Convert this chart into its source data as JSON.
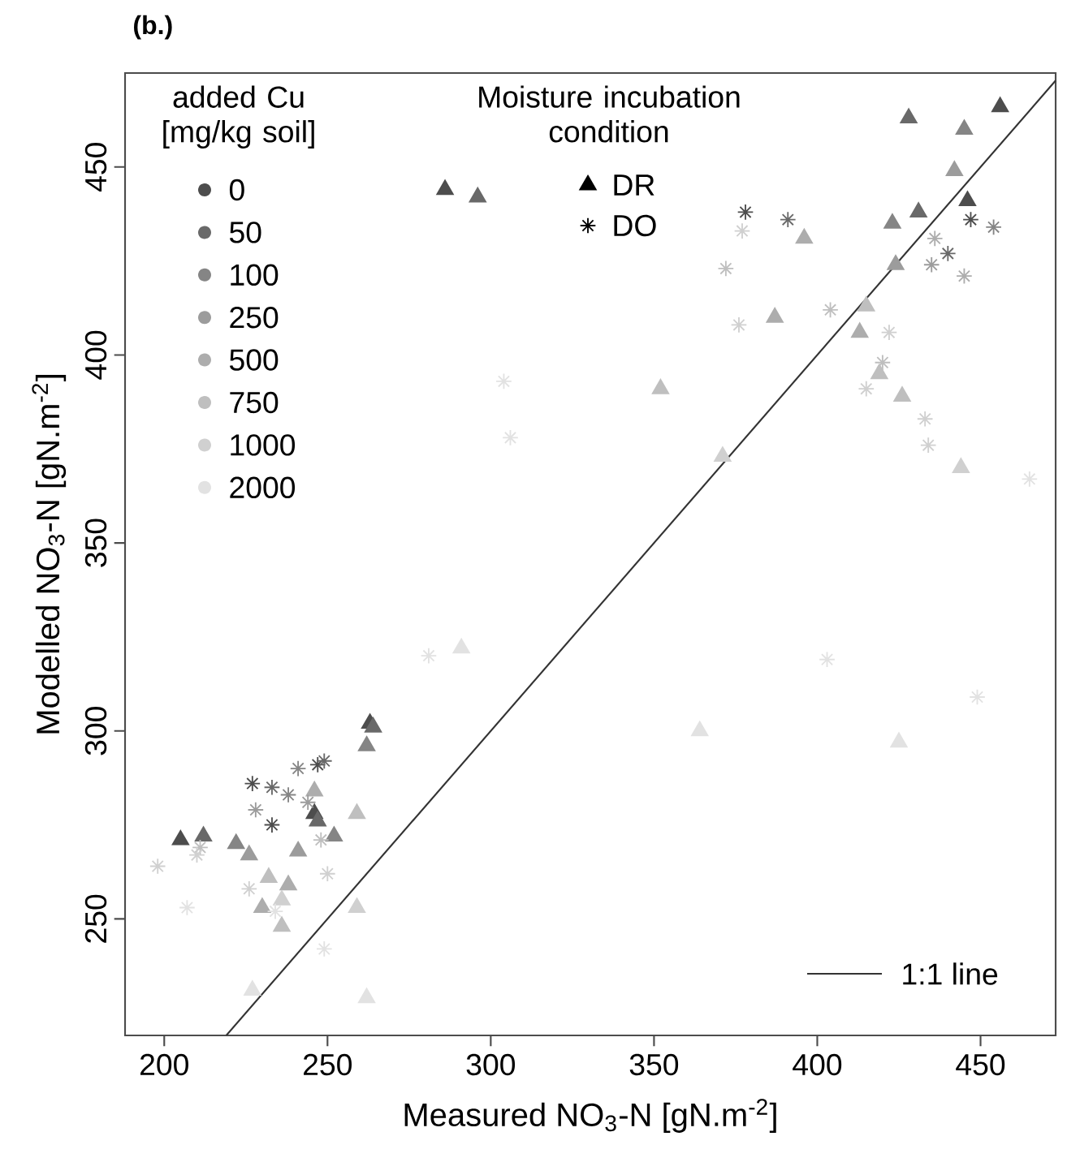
{
  "chart_data": {
    "type": "scatter",
    "title": "(b.)",
    "xlabel": "Measured NO$_{3}$-N [gN.m$^{-2}$]",
    "ylabel": "Modelled NO$_{3}$-N [gN.m$^{-2}$]",
    "xlim": [
      188,
      473
    ],
    "ylim": [
      219,
      475
    ],
    "xticks": [
      200,
      250,
      300,
      350,
      400,
      450
    ],
    "yticks": [
      250,
      300,
      350,
      400,
      450
    ],
    "legend": "top left",
    "legend_title": "added Cu [mg/kg soil]",
    "annotations": [
      "Moisture incubation condition",
      "DR",
      "DO",
      "1:1 line"
    ],
    "series": [
      {
        "name": "0",
        "color": "#4d4d4d",
        "marker": "triangle",
        "x": [
          205,
          246,
          263,
          286,
          456,
          446
        ],
        "values": [
          271,
          278,
          302,
          444,
          466,
          441
        ]
      },
      {
        "name": "50",
        "color": "#696969",
        "marker": "triangle",
        "x": [
          212,
          247,
          264,
          296,
          428,
          431
        ],
        "values": [
          272,
          276,
          301,
          442,
          463,
          438
        ]
      },
      {
        "name": "100",
        "color": "#858585",
        "marker": "triangle",
        "x": [
          222,
          252,
          262,
          445,
          423
        ],
        "values": [
          270,
          272,
          296,
          460,
          435
        ]
      },
      {
        "name": "250",
        "color": "#9c9c9c",
        "marker": "triangle",
        "x": [
          226,
          241,
          442,
          424
        ],
        "values": [
          267,
          268,
          449,
          424
        ]
      },
      {
        "name": "500",
        "color": "#adadad",
        "marker": "triangle",
        "x": [
          230,
          238,
          246,
          396,
          387,
          413
        ],
        "values": [
          253,
          259,
          284,
          431,
          410,
          406
        ]
      },
      {
        "name": "750",
        "color": "#bfbfbf",
        "marker": "triangle",
        "x": [
          236,
          232,
          259,
          352,
          415,
          419,
          426
        ],
        "values": [
          248,
          261,
          278,
          391,
          413,
          395,
          389
        ]
      },
      {
        "name": "1000",
        "color": "#d0d0d0",
        "marker": "triangle",
        "x": [
          236,
          259,
          371,
          444
        ],
        "values": [
          255,
          253,
          373,
          370
        ]
      },
      {
        "name": "2000",
        "color": "#e2e2e2",
        "marker": "triangle",
        "x": [
          262,
          227,
          291,
          364,
          425
        ],
        "values": [
          229,
          231,
          322,
          300,
          297
        ]
      },
      {
        "color": "#4d4d4d",
        "marker": "cross",
        "x": [
          227,
          233,
          247,
          378,
          447
        ],
        "values": [
          286,
          275,
          291,
          438,
          436
        ]
      },
      {
        "color": "#696969",
        "marker": "cross",
        "x": [
          233,
          249,
          391,
          440
        ],
        "values": [
          285,
          292,
          436,
          427
        ]
      },
      {
        "color": "#858585",
        "marker": "cross",
        "x": [
          238,
          241,
          454
        ],
        "values": [
          283,
          290,
          434
        ]
      },
      {
        "color": "#9c9c9c",
        "marker": "cross",
        "x": [
          228,
          244,
          435
        ],
        "values": [
          279,
          281,
          424
        ]
      },
      {
        "color": "#adadad",
        "marker": "cross",
        "x": [
          436,
          445
        ],
        "values": [
          431,
          421
        ]
      },
      {
        "color": "#bfbfbf",
        "marker": "cross",
        "x": [
          211,
          248,
          372,
          404,
          420
        ],
        "values": [
          269,
          271,
          423,
          412,
          398
        ]
      },
      {
        "color": "#d0d0d0",
        "marker": "cross",
        "x": [
          198,
          210,
          226,
          250,
          377,
          376,
          422,
          415,
          433,
          434
        ],
        "values": [
          264,
          267,
          258,
          262,
          433,
          408,
          406,
          391,
          383,
          376
        ]
      },
      {
        "color": "#e2e2e2",
        "marker": "cross",
        "x": [
          207,
          234,
          249,
          281,
          304,
          306,
          403,
          449,
          465
        ],
        "values": [
          253,
          252,
          242,
          320,
          393,
          378,
          319,
          309,
          367
        ]
      },
      {
        "type": "line",
        "line_style": "solid",
        "color": "#333333",
        "x": [
          219,
          473
        ],
        "values": [
          219,
          473
        ]
      }
    ]
  }
}
